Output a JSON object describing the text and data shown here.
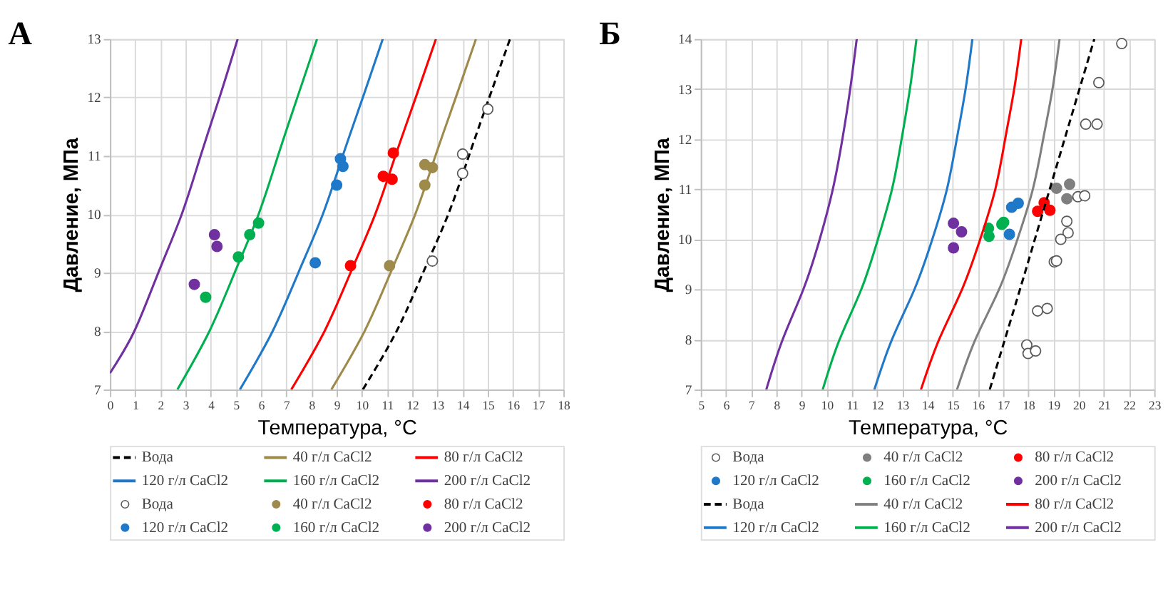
{
  "chart_data": [
    {
      "type": "line",
      "title": "А",
      "xlabel": "Температура, °C",
      "ylabel": "Давление, МПа",
      "xlim": [
        0,
        18
      ],
      "ylim": [
        7,
        13
      ],
      "xticks": [
        0,
        1,
        2,
        3,
        4,
        5,
        6,
        7,
        8,
        9,
        10,
        11,
        12,
        13,
        14,
        15,
        16,
        17,
        18
      ],
      "yticks": [
        7,
        8,
        9,
        10,
        11,
        12,
        13
      ],
      "grid": true,
      "legend": "bottom",
      "series": [
        {
          "name": "Вода",
          "line_style": "dashed",
          "color": "#000000",
          "x": [
            10.04,
            11.38,
            12.43,
            13.43,
            14.25,
            15.06,
            15.88
          ],
          "values": [
            7,
            8,
            9,
            10,
            11,
            12,
            13
          ]
        },
        {
          "name": "40 г/л CaCl2",
          "line_style": "solid",
          "color": "#9e8a4a",
          "x": [
            8.79,
            10.11,
            11.14,
            12.12,
            12.92,
            13.73,
            14.53
          ],
          "values": [
            7,
            8,
            9,
            10,
            11,
            12,
            13
          ]
        },
        {
          "name": "80 г/л CaCl2",
          "line_style": "solid",
          "color": "#ff0000",
          "x": [
            7.2,
            8.52,
            9.55,
            10.53,
            11.33,
            12.14,
            12.94
          ],
          "values": [
            7,
            8,
            9,
            10,
            11,
            12,
            13
          ]
        },
        {
          "name": "120 г/л CaCl2",
          "line_style": "solid",
          "color": "#1f78c8",
          "x": [
            5.16,
            6.46,
            7.48,
            8.45,
            9.24,
            10.04,
            10.83
          ],
          "values": [
            7,
            8,
            9,
            10,
            11,
            12,
            13
          ]
        },
        {
          "name": "160 г/л CaCl2",
          "line_style": "solid",
          "color": "#00b050",
          "x": [
            2.68,
            3.95,
            4.95,
            5.9,
            6.67,
            7.44,
            8.22
          ],
          "values": [
            7,
            8,
            9,
            10,
            11,
            12,
            13
          ]
        },
        {
          "name": "200 г/л CaCl2",
          "line_style": "solid",
          "color": "#7030a0",
          "x": [
            0,
            0.97,
            1.92,
            2.85,
            3.6,
            4.35,
            5.07
          ],
          "values": [
            7.28,
            8,
            9,
            10,
            11,
            12,
            13
          ]
        },
        {
          "name": "Вода",
          "type": "scatter",
          "marker": "circle",
          "color": "#ffffff",
          "x": [
            12.8,
            14.0,
            14.0,
            15.0
          ],
          "values": [
            9.2,
            10.7,
            11.03,
            11.8
          ]
        },
        {
          "name": "40 г/л CaCl2",
          "type": "scatter",
          "marker": "circle",
          "color": "#9e8a4a",
          "x": [
            11.1,
            12.5,
            12.5,
            12.8
          ],
          "values": [
            9.12,
            10.5,
            10.85,
            10.8
          ]
        },
        {
          "name": "80 г/л CaCl2",
          "type": "scatter",
          "marker": "circle",
          "color": "#ff0000",
          "x": [
            9.55,
            10.85,
            11.2,
            11.25
          ],
          "values": [
            9.12,
            10.65,
            10.6,
            11.05
          ]
        },
        {
          "name": "120 г/л CaCl2",
          "type": "scatter",
          "marker": "circle",
          "color": "#1f78c8",
          "x": [
            8.15,
            9.0,
            9.15,
            9.25
          ],
          "values": [
            9.17,
            10.5,
            10.95,
            10.82
          ]
        },
        {
          "name": "160 г/л CaCl2",
          "type": "scatter",
          "marker": "circle",
          "color": "#00b050",
          "x": [
            3.8,
            5.1,
            5.55,
            5.9
          ],
          "values": [
            8.58,
            9.27,
            9.65,
            9.85
          ]
        },
        {
          "name": "200 г/л CaCl2",
          "type": "scatter",
          "marker": "circle",
          "color": "#7030a0",
          "x": [
            3.35,
            4.15,
            4.25
          ],
          "values": [
            8.8,
            9.65,
            9.45
          ]
        }
      ]
    },
    {
      "type": "line",
      "title": "Б",
      "xlabel": "Температура, °C",
      "ylabel": "Давление, МПа",
      "xlim": [
        5,
        23
      ],
      "ylim": [
        7,
        14
      ],
      "xticks": [
        5,
        6,
        7,
        8,
        9,
        10,
        11,
        12,
        13,
        14,
        15,
        16,
        17,
        18,
        19,
        20,
        21,
        22,
        23
      ],
      "yticks": [
        7,
        8,
        9,
        10,
        11,
        12,
        13,
        14
      ],
      "grid": true,
      "legend": "bottom",
      "series": [
        {
          "name": "Вода",
          "type": "scatter",
          "marker": "circle",
          "color": "#ffffff",
          "x": [
            21.71,
            20.8,
            20.28,
            20.73,
            19.97,
            20.24,
            19.53,
            19.58,
            19.29,
            19.03,
            19.12,
            18.37,
            18.75,
            17.94,
            17.99,
            18.29
          ],
          "values": [
            13.91,
            13.13,
            12.3,
            12.3,
            10.85,
            10.87,
            10.36,
            10.13,
            10.0,
            9.55,
            9.57,
            8.57,
            8.62,
            7.89,
            7.72,
            7.77
          ]
        },
        {
          "name": "40 г/л CaCl2",
          "type": "scatter",
          "marker": "circle",
          "color": "#7f7f7f",
          "x": [
            19.12,
            19.64,
            19.53
          ],
          "values": [
            11.02,
            11.1,
            10.81
          ]
        },
        {
          "name": "80 г/л CaCl2",
          "type": "scatter",
          "marker": "circle",
          "color": "#ff0000",
          "x": [
            18.37,
            18.63,
            18.86
          ],
          "values": [
            10.56,
            10.73,
            10.58
          ]
        },
        {
          "name": "120 г/л CaCl2",
          "type": "scatter",
          "marker": "circle",
          "color": "#1f78c8",
          "x": [
            17.34,
            17.6,
            17.25
          ],
          "values": [
            10.64,
            10.72,
            10.1
          ]
        },
        {
          "name": "160 г/л CaCl2",
          "type": "scatter",
          "marker": "circle",
          "color": "#00b050",
          "x": [
            16.42,
            16.44,
            16.95,
            17.02
          ],
          "values": [
            10.22,
            10.06,
            10.3,
            10.34
          ]
        },
        {
          "name": "200 г/л CaCl2",
          "type": "scatter",
          "marker": "circle",
          "color": "#7030a0",
          "x": [
            15.03,
            15.35,
            15.03
          ],
          "values": [
            10.32,
            10.15,
            9.83
          ]
        },
        {
          "name": "Вода",
          "line_style": "dashed",
          "color": "#000000",
          "x": [
            16.47,
            17.07,
            17.67,
            18.26,
            18.85,
            19.44,
            20.03,
            20.62
          ],
          "values": [
            7,
            8,
            9,
            10,
            11,
            12,
            13,
            14
          ]
        },
        {
          "name": "40 г/л CaCl2",
          "line_style": "solid",
          "color": "#7f7f7f",
          "x": [
            15.17,
            15.9,
            16.84,
            17.57,
            18.18,
            18.59,
            18.96,
            19.24
          ],
          "values": [
            7,
            8,
            9,
            10,
            11,
            12,
            13,
            14
          ]
        },
        {
          "name": "80 г/л CaCl2",
          "line_style": "solid",
          "color": "#ff0000",
          "x": [
            13.74,
            14.46,
            15.37,
            16.09,
            16.69,
            17.08,
            17.44,
            17.72
          ],
          "values": [
            7,
            8,
            9,
            10,
            11,
            12,
            13,
            14
          ]
        },
        {
          "name": "120 г/л CaCl2",
          "line_style": "solid",
          "color": "#1f78c8",
          "x": [
            11.89,
            12.59,
            13.48,
            14.19,
            14.77,
            15.16,
            15.51,
            15.78
          ],
          "values": [
            7,
            8,
            9,
            10,
            11,
            12,
            13,
            14
          ]
        },
        {
          "name": "160 г/л CaCl2",
          "line_style": "solid",
          "color": "#00b050",
          "x": [
            9.84,
            10.51,
            11.37,
            12.03,
            12.59,
            12.97,
            13.3,
            13.56
          ],
          "values": [
            7,
            8,
            9,
            10,
            11,
            12,
            13,
            14
          ]
        },
        {
          "name": "200 г/л CaCl2",
          "line_style": "solid",
          "color": "#7030a0",
          "x": [
            7.6,
            8.25,
            9.07,
            9.72,
            10.24,
            10.62,
            10.93,
            11.19
          ],
          "values": [
            7,
            8,
            9,
            10,
            11,
            12,
            13,
            14
          ]
        }
      ]
    }
  ]
}
